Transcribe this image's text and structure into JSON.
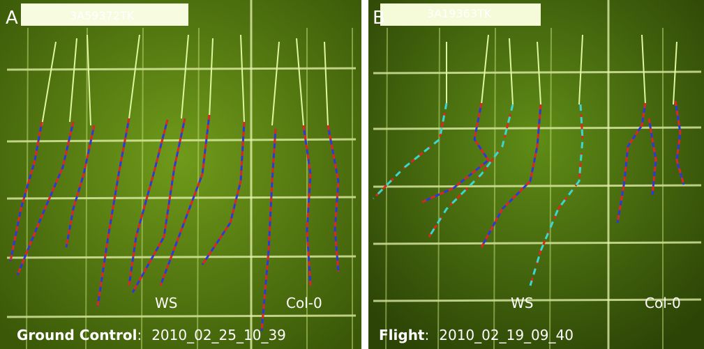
{
  "panels": [
    {
      "letter": "A",
      "plate_label": "3A59372TK",
      "genotypes": [
        "WS",
        "Col-0"
      ],
      "condition": "Ground Control",
      "separator": ":",
      "timestamp": "2010_02_25_10_39"
    },
    {
      "letter": "B",
      "plate_label": "3A19363TK",
      "genotypes": [
        "WS",
        "Col-0"
      ],
      "condition": "Flight",
      "separator": ":",
      "timestamp": "2010_02_19_09_40"
    }
  ]
}
